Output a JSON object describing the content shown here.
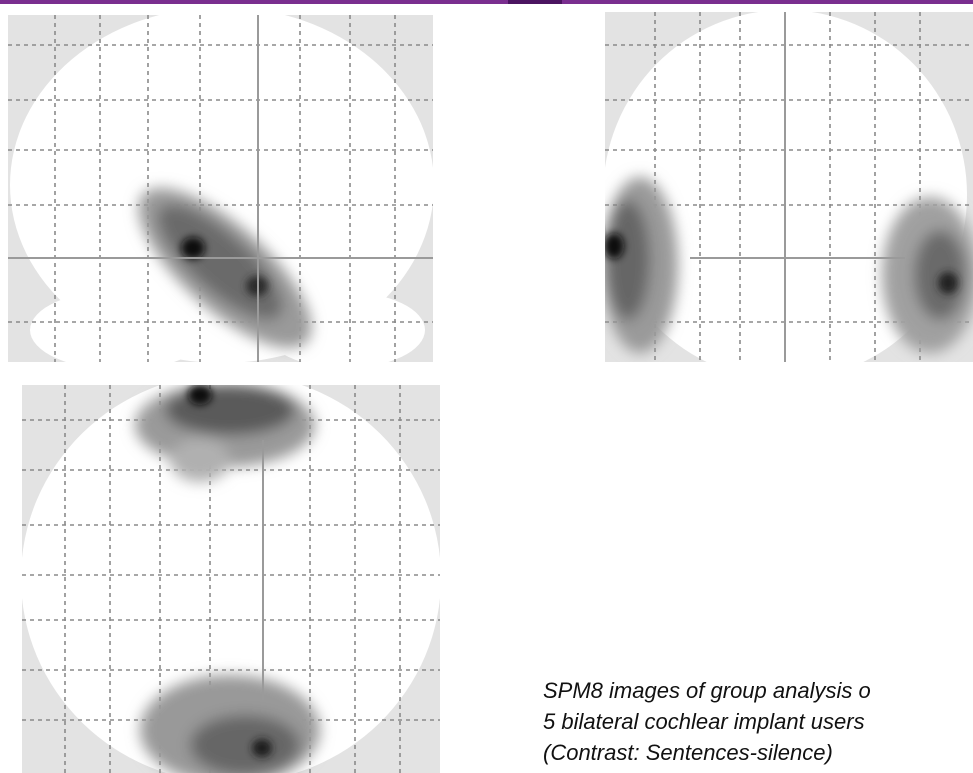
{
  "caption": {
    "lines": [
      "SPM8 images of group analysis o",
      "5 bilateral cochlear implant users",
      "(Contrast: Sentences-silence)"
    ]
  }
}
